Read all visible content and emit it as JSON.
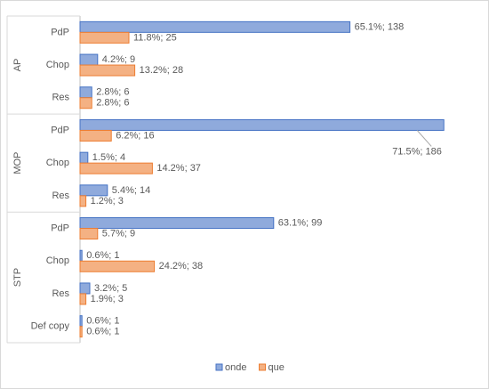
{
  "chart_data": {
    "type": "bar",
    "orientation": "horizontal",
    "groups": [
      {
        "name": "AP",
        "categories": [
          "PdP",
          "Chop",
          "Res"
        ]
      },
      {
        "name": "MOP",
        "categories": [
          "PdP",
          "Chop",
          "Res"
        ]
      },
      {
        "name": "STP",
        "categories": [
          "PdP",
          "Chop",
          "Res",
          "Def copy"
        ]
      }
    ],
    "series": [
      {
        "name": "onde",
        "color": "#8faadc",
        "border": "#4472c4",
        "values": [
          138,
          9,
          6,
          186,
          4,
          14,
          99,
          1,
          5,
          1
        ],
        "value_labels": [
          "65.1%; 138",
          "4.2%; 9",
          "2.8%; 6",
          "71.5%; 186",
          "1.5%; 4",
          "5.4%; 14",
          "63.1%; 99",
          "0.6%; 1",
          "3.2%; 5",
          "0.6%; 1"
        ]
      },
      {
        "name": "que",
        "color": "#f4b183",
        "border": "#ed7d31",
        "values": [
          25,
          28,
          6,
          16,
          37,
          3,
          9,
          38,
          3,
          1
        ],
        "value_labels": [
          "11.8%; 25",
          "13.2%; 28",
          "2.8%; 6",
          "6.2%; 16",
          "14.2%; 37",
          "1.2%; 3",
          "5.7%; 9",
          "24.2%; 38",
          "1.9%; 3",
          "0.6%; 1"
        ]
      }
    ],
    "xlim": [
      0,
      200
    ],
    "legend": "bottom"
  }
}
